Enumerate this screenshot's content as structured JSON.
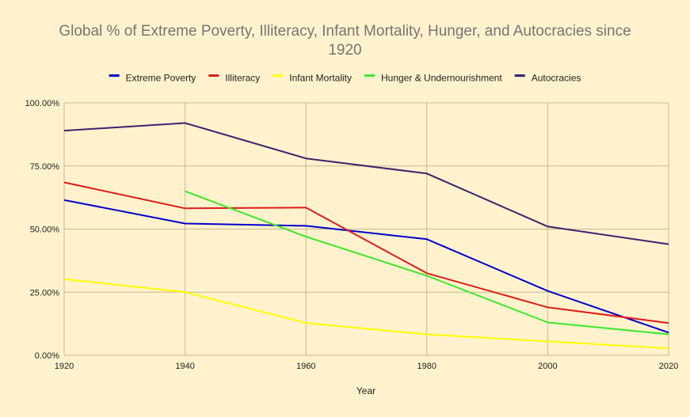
{
  "chart_data": {
    "type": "line",
    "title_line1": "Global % of Extreme Poverty, Illiteracy, Infant Mortality, Hunger, and Autocracies since",
    "title_line2": "1920",
    "xlabel": "Year",
    "ylabel": "",
    "x": [
      1920,
      1940,
      1960,
      1980,
      2000,
      2020
    ],
    "x_tick_labels": [
      "1920",
      "1940",
      "1960",
      "1980",
      "2000",
      "2020"
    ],
    "xlim": [
      1920,
      2020
    ],
    "ylim": [
      0,
      100
    ],
    "y_ticks": [
      0,
      25,
      50,
      75,
      100
    ],
    "y_tick_labels": [
      "0.00%",
      "25.00%",
      "50.00%",
      "75.00%",
      "100.00%"
    ],
    "grid": true,
    "legend_position": "top",
    "series": [
      {
        "name": "Extreme Poverty",
        "color": "#0000cc",
        "values": [
          61.5,
          52.2,
          51.3,
          46.0,
          25.5,
          9.0
        ]
      },
      {
        "name": "Illiteracy",
        "color": "#dd1c1c",
        "values": [
          68.5,
          58.2,
          58.5,
          32.5,
          19.0,
          12.8
        ]
      },
      {
        "name": "Infant Mortality",
        "color": "#ffff00",
        "values": [
          30.2,
          25.0,
          12.8,
          8.3,
          5.5,
          2.8
        ]
      },
      {
        "name": "Hunger & Undernourishment",
        "color": "#3ee62b",
        "values": [
          null,
          65.0,
          47.0,
          31.5,
          13.0,
          8.3
        ]
      },
      {
        "name": "Autocracies",
        "color": "#3f2170",
        "values": [
          89.0,
          92.0,
          78.0,
          72.0,
          51.0,
          44.0
        ]
      }
    ]
  }
}
